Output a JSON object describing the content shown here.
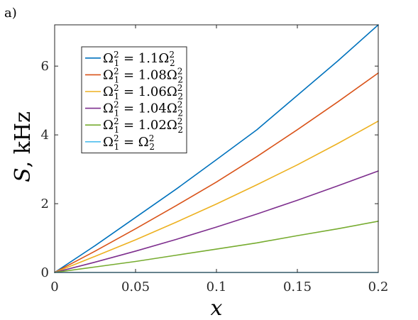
{
  "panel_label": "a)",
  "colors": {
    "axis": "#262626",
    "background": "#ffffff",
    "legend_border": "#262626"
  },
  "chart_data": {
    "type": "line",
    "title": "",
    "xlabel": "x",
    "ylabel": "S, kHz",
    "ylabel_italic_part": "S",
    "ylabel_unit_part": ", kHz",
    "xlim": [
      0,
      0.2
    ],
    "ylim": [
      0,
      7.2
    ],
    "xticks": [
      0,
      0.05,
      0.1,
      0.15,
      0.2
    ],
    "xtick_labels": [
      "0",
      "0.05",
      "0.1",
      "0.15",
      "0.2"
    ],
    "yticks": [
      0,
      2,
      4,
      6
    ],
    "ytick_labels": [
      "0",
      "2",
      "4",
      "6"
    ],
    "grid": false,
    "legend_position": "top-left",
    "x": [
      0,
      0.025,
      0.05,
      0.075,
      0.1,
      0.125,
      0.15,
      0.175,
      0.2
    ],
    "series": [
      {
        "name": "Ω₁² = 1.1Ω₂²",
        "legend": {
          "lhs_base": "Ω",
          "lhs_sub": "1",
          "lhs_sup": "2",
          "eq": " = ",
          "coef": "1.1",
          "rhs_base": "Ω",
          "rhs_sub": "2",
          "rhs_sup": "2"
        },
        "color": "#0072BD",
        "values": [
          0,
          0.78,
          1.6,
          2.42,
          3.28,
          4.15,
          5.15,
          6.15,
          7.2
        ]
      },
      {
        "name": "Ω₁² = 1.08Ω₂²",
        "legend": {
          "lhs_base": "Ω",
          "lhs_sub": "1",
          "lhs_sup": "2",
          "eq": " = ",
          "coef": "1.08",
          "rhs_base": "Ω",
          "rhs_sub": "2",
          "rhs_sup": "2"
        },
        "color": "#D95319",
        "values": [
          0,
          0.62,
          1.27,
          1.94,
          2.63,
          3.37,
          4.15,
          4.96,
          5.8
        ]
      },
      {
        "name": "Ω₁² = 1.06Ω₂²",
        "legend": {
          "lhs_base": "Ω",
          "lhs_sub": "1",
          "lhs_sup": "2",
          "eq": " = ",
          "coef": "1.06",
          "rhs_base": "Ω",
          "rhs_sub": "2",
          "rhs_sup": "2"
        },
        "color": "#EDB120",
        "values": [
          0,
          0.47,
          0.95,
          1.46,
          1.99,
          2.55,
          3.13,
          3.75,
          4.4
        ]
      },
      {
        "name": "Ω₁² = 1.04Ω₂²",
        "legend": {
          "lhs_base": "Ω",
          "lhs_sub": "1",
          "lhs_sup": "2",
          "eq": " = ",
          "coef": "1.04",
          "rhs_base": "Ω",
          "rhs_sub": "2",
          "rhs_sup": "2"
        },
        "color": "#7E2F8E",
        "values": [
          0,
          0.3,
          0.62,
          0.96,
          1.32,
          1.7,
          2.1,
          2.52,
          2.95
        ]
      },
      {
        "name": "Ω₁² = 1.02Ω₂²",
        "legend": {
          "lhs_base": "Ω",
          "lhs_sub": "1",
          "lhs_sup": "2",
          "eq": " = ",
          "coef": "1.02",
          "rhs_base": "Ω",
          "rhs_sub": "2",
          "rhs_sup": "2"
        },
        "color": "#77AC30",
        "values": [
          0,
          0.16,
          0.32,
          0.5,
          0.68,
          0.86,
          1.07,
          1.27,
          1.49
        ]
      },
      {
        "name": "Ω₁² = Ω₂²",
        "legend": {
          "lhs_base": "Ω",
          "lhs_sub": "1",
          "lhs_sup": "2",
          "eq": " = ",
          "coef": "",
          "rhs_base": "Ω",
          "rhs_sub": "2",
          "rhs_sup": "2"
        },
        "color": "#4DBEEE",
        "values": [
          0,
          0,
          0,
          0,
          0,
          0,
          0,
          0,
          0
        ]
      }
    ]
  }
}
